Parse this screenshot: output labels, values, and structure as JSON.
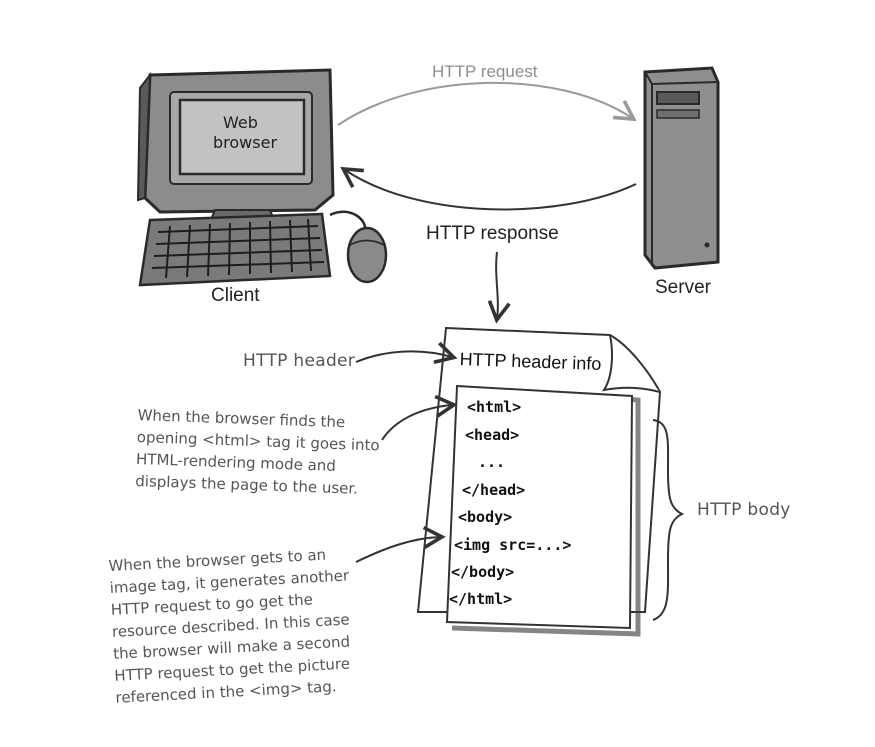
{
  "client": {
    "screen_text_line1": "Web",
    "screen_text_line2": "browser",
    "label": "Client"
  },
  "server": {
    "label": "Server"
  },
  "arrows": {
    "request_label": "HTTP request",
    "response_label": "HTTP response"
  },
  "document": {
    "header_info": "HTTP header info",
    "code_lines": [
      "<html>",
      "<head>",
      "...",
      "</head>",
      "<body>",
      "<img src=...>",
      "</body>",
      "</html>"
    ]
  },
  "annotations": {
    "http_header": "HTTP header",
    "http_body": "HTTP body",
    "html_note_lines": [
      "When the browser finds the",
      "opening <html> tag it goes into",
      "HTML-rendering mode and",
      "displays the page to the user."
    ],
    "img_note_lines": [
      "When the browser gets to an",
      "image tag, it generates another",
      "HTTP request to go get the",
      "resource described. In this case",
      "the browser will make a second",
      "HTTP request to get the picture",
      "referenced in the <img> tag."
    ]
  },
  "colors": {
    "sketch_dark": "#333333",
    "request_arrow": "#9a9a9a",
    "monitor_fill": "#8c8c8c",
    "screen_fill": "#b8b8b8"
  }
}
